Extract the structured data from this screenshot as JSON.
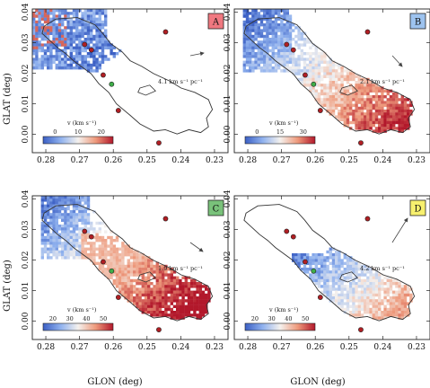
{
  "chart_data": {
    "type": "heatmap",
    "xlabel": "GLON (deg)",
    "ylabel": "GLAT (deg)",
    "xlim": [
      0.284,
      0.226
    ],
    "ylim": [
      -0.006,
      0.041
    ],
    "x_ticks": [
      "0.28",
      "0.27",
      "0.26",
      "0.25",
      "0.24",
      "0.23"
    ],
    "x_tick_values": [
      0.28,
      0.27,
      0.26,
      0.25,
      0.24,
      0.23
    ],
    "y_ticks": [
      "0.00",
      "0.01",
      "0.02",
      "0.03",
      "0.04"
    ],
    "y_tick_values": [
      0.0,
      0.01,
      0.02,
      0.03,
      0.04
    ],
    "colorbar_label": "v (km s⁻¹)",
    "colormap": [
      "#3b5fc4",
      "#8fb1ee",
      "#f4f1ee",
      "#ee9a7c",
      "#b2182b"
    ],
    "markers": [
      {
        "kind": "red",
        "x": 0.2665,
        "y": 0.0276
      },
      {
        "kind": "red",
        "x": 0.2685,
        "y": 0.0294
      },
      {
        "kind": "red",
        "x": 0.263,
        "y": 0.0194
      },
      {
        "kind": "green",
        "x": 0.2605,
        "y": 0.0164
      },
      {
        "kind": "red",
        "x": 0.2585,
        "y": 0.0078
      },
      {
        "kind": "red",
        "x": 0.2445,
        "y": 0.0335
      },
      {
        "kind": "red",
        "x": 0.2465,
        "y": -0.0028
      }
    ],
    "panels": [
      {
        "letter": "A",
        "badge_color": "#f07880",
        "gradient_label": "4.1 km s⁻¹ pc⁻¹",
        "arrow": {
          "dx": 15,
          "dy": -3
        },
        "cbar_ticks": [
          "0",
          "10",
          "20"
        ],
        "cbar_tick_pos": [
          0.17,
          0.5,
          0.83
        ],
        "colored_region": "north-west",
        "trend": "increasing toward the north-west"
      },
      {
        "letter": "B",
        "badge_color": "#9dc3ef",
        "gradient_label": "2.1 km s⁻¹ pc⁻¹",
        "arrow": {
          "dx": 11,
          "dy": 12
        },
        "cbar_ticks": [
          "0",
          "15",
          "30"
        ],
        "cbar_tick_pos": [
          0.17,
          0.5,
          0.83
        ],
        "colored_region": "whole",
        "trend": "increasing toward the south-east"
      },
      {
        "letter": "C",
        "badge_color": "#79c27a",
        "gradient_label": "1.9 km s⁻¹ pc⁻¹",
        "arrow": {
          "dx": 14,
          "dy": 10
        },
        "cbar_ticks": [
          "20",
          "30",
          "40",
          "50"
        ],
        "cbar_tick_pos": [
          0.14,
          0.38,
          0.62,
          0.86
        ],
        "colored_region": "whole",
        "trend": "increasing toward the south-east"
      },
      {
        "letter": "D",
        "badge_color": "#f7f06e",
        "gradient_label": "4.2 km s⁻¹ pc⁻¹",
        "arrow": {
          "dx": 17,
          "dy": -27
        },
        "cbar_ticks": [
          "20",
          "30",
          "40",
          "50"
        ],
        "cbar_tick_pos": [
          0.14,
          0.38,
          0.62,
          0.86
        ],
        "colored_region": "south-east",
        "trend": "increasing toward the south-east"
      }
    ]
  }
}
